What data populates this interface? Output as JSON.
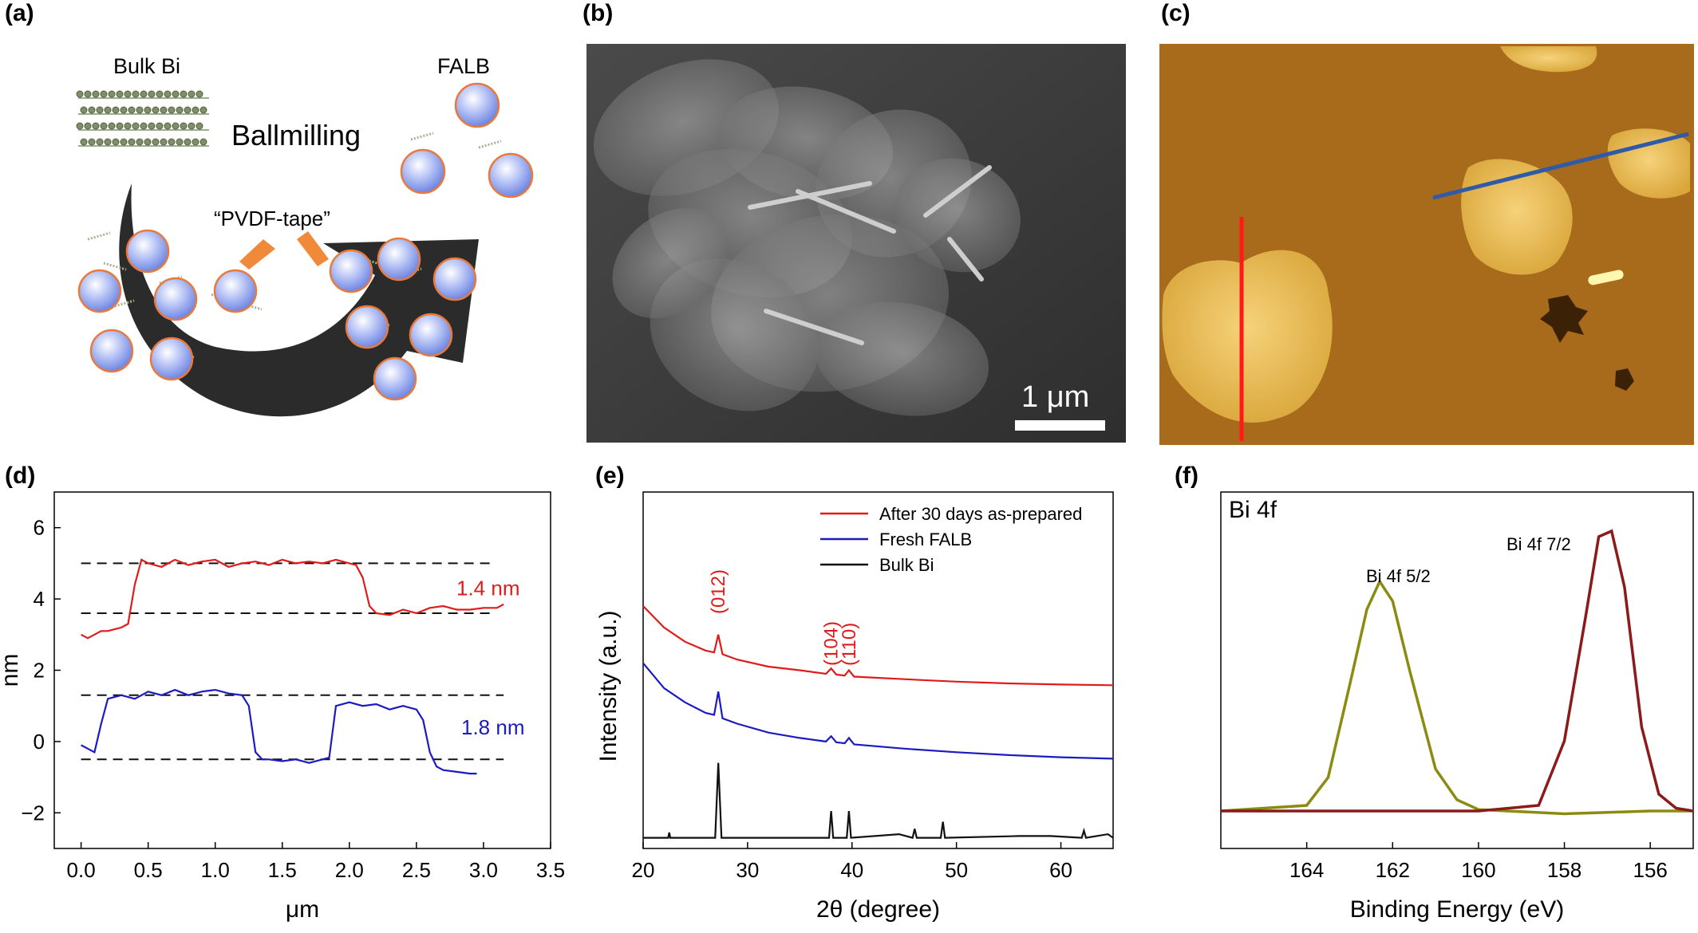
{
  "panel_labels": [
    "(a)",
    "(b)",
    "(c)",
    "(d)",
    "(e)",
    "(f)"
  ],
  "schematic": {
    "bulk_label": "Bulk Bi",
    "falb_label": "FALB",
    "process_label": "Ballmilling",
    "tape_label": "“PVDF-tape”",
    "colors": {
      "sphere": "#9fb1f0",
      "sphere_edge": "#e87a3e",
      "arrow": "#2b2b2b",
      "pointer": "#f08a3a",
      "bulk": "#7f8f6a"
    }
  },
  "sem": {
    "scale_bar_label": "1 μm"
  },
  "afm": {
    "colors": {
      "line1": "#ff1a1a",
      "line2": "#2f5aa8"
    }
  },
  "chart_data": [
    {
      "panel": "(d)",
      "type": "line",
      "xlabel": "μm",
      "ylabel": "nm",
      "xlim": [
        -0.2,
        3.5
      ],
      "ylim": [
        -3,
        7
      ],
      "xticks": [
        "0.0",
        "0.5",
        "1.0",
        "1.5",
        "2.0",
        "2.5",
        "3.0",
        "3.5"
      ],
      "yticks": [
        "−2",
        "0",
        "2",
        "4",
        "6"
      ],
      "annotations": [
        {
          "text": "1.4 nm",
          "color": "#e01b1b"
        },
        {
          "text": "1.8 nm",
          "color": "#1b1bc0"
        }
      ],
      "reference_lines": [
        {
          "y": 5.0,
          "x": [
            0.0,
            3.05
          ]
        },
        {
          "y": 3.6,
          "x": [
            0.0,
            3.05
          ]
        },
        {
          "y": 1.3,
          "x": [
            0.0,
            3.15
          ]
        },
        {
          "y": -0.5,
          "x": [
            0.0,
            3.15
          ]
        }
      ],
      "series": [
        {
          "color": "#e01b1b",
          "x": [
            0.0,
            0.05,
            0.1,
            0.15,
            0.2,
            0.25,
            0.3,
            0.35,
            0.4,
            0.45,
            0.5,
            0.6,
            0.7,
            0.8,
            0.9,
            1.0,
            1.1,
            1.2,
            1.3,
            1.4,
            1.5,
            1.6,
            1.7,
            1.8,
            1.9,
            2.0,
            2.05,
            2.1,
            2.15,
            2.2,
            2.3,
            2.4,
            2.5,
            2.6,
            2.7,
            2.8,
            2.9,
            3.0,
            3.1,
            3.15
          ],
          "y": [
            3.0,
            2.9,
            3.0,
            3.1,
            3.1,
            3.15,
            3.2,
            3.3,
            4.4,
            5.1,
            5.0,
            4.9,
            5.1,
            4.95,
            5.05,
            5.1,
            4.9,
            5.0,
            5.05,
            4.95,
            5.1,
            5.0,
            5.05,
            5.0,
            5.1,
            5.0,
            4.95,
            4.6,
            3.8,
            3.6,
            3.55,
            3.7,
            3.6,
            3.75,
            3.8,
            3.7,
            3.7,
            3.75,
            3.75,
            3.85
          ]
        },
        {
          "color": "#1b1bc0",
          "x": [
            0.0,
            0.05,
            0.1,
            0.15,
            0.2,
            0.3,
            0.4,
            0.5,
            0.6,
            0.7,
            0.8,
            0.9,
            1.0,
            1.1,
            1.2,
            1.25,
            1.3,
            1.35,
            1.4,
            1.5,
            1.6,
            1.7,
            1.8,
            1.85,
            1.9,
            2.0,
            2.1,
            2.2,
            2.3,
            2.4,
            2.5,
            2.55,
            2.6,
            2.65,
            2.7,
            2.8,
            2.9,
            2.95
          ],
          "y": [
            -0.1,
            -0.2,
            -0.3,
            0.5,
            1.2,
            1.3,
            1.2,
            1.4,
            1.3,
            1.45,
            1.3,
            1.4,
            1.45,
            1.35,
            1.3,
            1.0,
            -0.3,
            -0.5,
            -0.5,
            -0.55,
            -0.5,
            -0.6,
            -0.5,
            -0.45,
            1.0,
            1.1,
            1.0,
            1.05,
            0.9,
            1.0,
            0.9,
            0.6,
            -0.3,
            -0.7,
            -0.8,
            -0.85,
            -0.9,
            -0.9
          ]
        }
      ]
    },
    {
      "panel": "(e)",
      "type": "line",
      "xlabel": "2θ (degree)",
      "ylabel": "Intensity (a.u.)",
      "xlim": [
        20,
        65
      ],
      "xticks": [
        "20",
        "30",
        "40",
        "50",
        "60"
      ],
      "legend": [
        "After 30 days as-prepared",
        "Fresh FALB",
        "Bulk Bi"
      ],
      "legend_placement": "top-right",
      "peak_labels": [
        "(012)",
        "(104)",
        "(110)"
      ],
      "peak_positions": [
        27.2,
        38.0,
        39.7
      ],
      "series": [
        {
          "name": "After 30 days as-prepared",
          "color": "#e01b1b",
          "x": [
            20,
            22,
            24,
            26,
            26.8,
            27.2,
            27.6,
            29,
            32,
            35,
            37.5,
            38,
            38.5,
            39.3,
            39.7,
            40.2,
            45,
            50,
            55,
            60,
            65
          ],
          "y": [
            0.68,
            0.62,
            0.58,
            0.555,
            0.55,
            0.6,
            0.545,
            0.53,
            0.51,
            0.5,
            0.49,
            0.505,
            0.488,
            0.485,
            0.5,
            0.482,
            0.475,
            0.468,
            0.463,
            0.46,
            0.458
          ]
        },
        {
          "name": "Fresh FALB",
          "color": "#1b1bc0",
          "x": [
            20,
            22,
            24,
            26,
            26.8,
            27.2,
            27.6,
            29,
            32,
            35,
            37.5,
            38,
            38.5,
            39.3,
            39.7,
            40.2,
            45,
            50,
            55,
            60,
            65
          ],
          "y": [
            0.52,
            0.45,
            0.41,
            0.38,
            0.375,
            0.44,
            0.365,
            0.35,
            0.325,
            0.31,
            0.3,
            0.315,
            0.298,
            0.295,
            0.31,
            0.292,
            0.28,
            0.27,
            0.262,
            0.256,
            0.252
          ]
        },
        {
          "name": "Bulk Bi",
          "color": "#111111",
          "x": [
            20,
            22.4,
            22.5,
            22.6,
            26.9,
            27.2,
            27.5,
            37.8,
            38.0,
            38.2,
            39.5,
            39.7,
            39.9,
            44.5,
            45.8,
            46.0,
            46.2,
            48.5,
            48.7,
            48.9,
            56,
            59,
            62,
            62.2,
            62.4,
            64.5,
            65
          ],
          "y": [
            0.03,
            0.03,
            0.045,
            0.03,
            0.03,
            0.24,
            0.03,
            0.03,
            0.105,
            0.03,
            0.03,
            0.105,
            0.03,
            0.04,
            0.03,
            0.055,
            0.03,
            0.03,
            0.075,
            0.03,
            0.035,
            0.035,
            0.03,
            0.05,
            0.03,
            0.04,
            0.03
          ]
        }
      ]
    },
    {
      "panel": "(f)",
      "type": "line",
      "title": "Bi 4f",
      "xlabel": "Binding Energy (eV)",
      "xlim": [
        166,
        155
      ],
      "xticks": [
        "164",
        "162",
        "160",
        "158",
        "156"
      ],
      "peak_labels": [
        "Bi 4f 5/2",
        "Bi 4f 7/2"
      ],
      "series": [
        {
          "color": "#8b8b12",
          "x": [
            166,
            164,
            163.5,
            163,
            162.6,
            162.3,
            162.0,
            161.6,
            161.0,
            160.5,
            160,
            158,
            157,
            156,
            155
          ],
          "y": [
            0.0,
            0.02,
            0.12,
            0.45,
            0.72,
            0.82,
            0.75,
            0.5,
            0.15,
            0.04,
            0.005,
            -0.01,
            -0.005,
            0.0,
            0.0
          ]
        },
        {
          "color": "#8b1a1a",
          "x": [
            166,
            160,
            158.6,
            158.0,
            157.5,
            157.2,
            156.9,
            156.6,
            156.2,
            155.8,
            155.4,
            155
          ],
          "y": [
            0.0,
            0.0,
            0.02,
            0.25,
            0.7,
            0.98,
            1.0,
            0.8,
            0.3,
            0.06,
            0.01,
            0.0
          ]
        }
      ]
    }
  ]
}
